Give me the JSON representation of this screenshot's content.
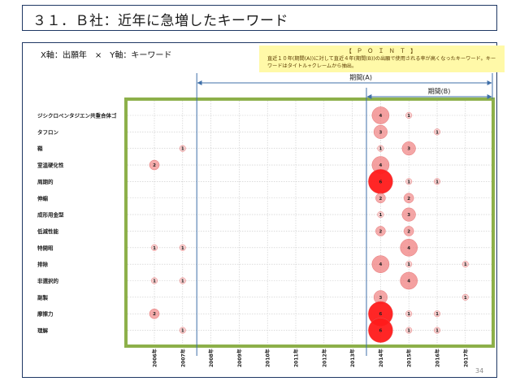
{
  "slide": {
    "title": "３１．Ｂ社：近年に急増したキーワード",
    "axis_description": "X軸：出願年　×　Y軸：キーワード",
    "point_title": "【 Ｐ Ｏ Ｉ Ｎ Ｔ 】",
    "point_body": "直近１０年(期間(A))に対して直近４年(期間(B))の出願で使用される率が高くなったキーワード。キーワードはタイトル+クレームから抽出。",
    "period_a_label": "期間(A)",
    "period_b_label": "期間(B)",
    "page_number": "34"
  },
  "colors": {
    "frame": "#1f3864",
    "plot_border": "#8db04a",
    "period_line": "#3f6fa8",
    "bubble_fill": "#f08080",
    "bubble_strong": "#ff1a1a",
    "point_bg": "#fff9a8"
  },
  "chart_data": {
    "type": "scatter",
    "subtype": "bubble",
    "x_categories": [
      "2006年",
      "2007年",
      "2008年",
      "2009年",
      "2010年",
      "2011年",
      "2012年",
      "2013年",
      "2014年",
      "2015年",
      "2016年",
      "2017年"
    ],
    "y_categories": [
      "ジシクロペンタジエン共重合体ゴ",
      "タフロン",
      "鞘",
      "室温硬化性",
      "周期的",
      "伸縮",
      "成形用金型",
      "低減性能",
      "特開昭",
      "排除",
      "非選択的",
      "副製",
      "摩擦力",
      "理解"
    ],
    "points": [
      {
        "y": "ジシクロペンタジエン共重合体ゴ",
        "x": "2014年",
        "v": 4
      },
      {
        "y": "ジシクロペンタジエン共重合体ゴ",
        "x": "2015年",
        "v": 1
      },
      {
        "y": "タフロン",
        "x": "2014年",
        "v": 3
      },
      {
        "y": "タフロン",
        "x": "2016年",
        "v": 1
      },
      {
        "y": "鞘",
        "x": "2007年",
        "v": 1
      },
      {
        "y": "鞘",
        "x": "2014年",
        "v": 1
      },
      {
        "y": "鞘",
        "x": "2015年",
        "v": 3
      },
      {
        "y": "室温硬化性",
        "x": "2006年",
        "v": 2
      },
      {
        "y": "室温硬化性",
        "x": "2014年",
        "v": 4
      },
      {
        "y": "周期的",
        "x": "2014年",
        "v": 6
      },
      {
        "y": "周期的",
        "x": "2015年",
        "v": 1
      },
      {
        "y": "周期的",
        "x": "2016年",
        "v": 1
      },
      {
        "y": "伸縮",
        "x": "2014年",
        "v": 2
      },
      {
        "y": "伸縮",
        "x": "2015年",
        "v": 2
      },
      {
        "y": "成形用金型",
        "x": "2014年",
        "v": 1
      },
      {
        "y": "成形用金型",
        "x": "2015年",
        "v": 3
      },
      {
        "y": "低減性能",
        "x": "2014年",
        "v": 2
      },
      {
        "y": "低減性能",
        "x": "2015年",
        "v": 2
      },
      {
        "y": "特開昭",
        "x": "2006年",
        "v": 1
      },
      {
        "y": "特開昭",
        "x": "2007年",
        "v": 1
      },
      {
        "y": "特開昭",
        "x": "2015年",
        "v": 4
      },
      {
        "y": "排除",
        "x": "2014年",
        "v": 4
      },
      {
        "y": "排除",
        "x": "2015年",
        "v": 1
      },
      {
        "y": "排除",
        "x": "2017年",
        "v": 1
      },
      {
        "y": "非選択的",
        "x": "2006年",
        "v": 1
      },
      {
        "y": "非選択的",
        "x": "2007年",
        "v": 1
      },
      {
        "y": "非選択的",
        "x": "2015年",
        "v": 4
      },
      {
        "y": "副製",
        "x": "2014年",
        "v": 3
      },
      {
        "y": "副製",
        "x": "2017年",
        "v": 1
      },
      {
        "y": "摩擦力",
        "x": "2006年",
        "v": 2
      },
      {
        "y": "摩擦力",
        "x": "2014年",
        "v": 6
      },
      {
        "y": "摩擦力",
        "x": "2015年",
        "v": 1
      },
      {
        "y": "摩擦力",
        "x": "2016年",
        "v": 1
      },
      {
        "y": "理解",
        "x": "2007年",
        "v": 1
      },
      {
        "y": "理解",
        "x": "2014年",
        "v": 6
      },
      {
        "y": "理解",
        "x": "2015年",
        "v": 1
      },
      {
        "y": "理解",
        "x": "2016年",
        "v": 1
      }
    ],
    "period_a": [
      "2008年",
      "2017年"
    ],
    "period_b": [
      "2014年",
      "2017年"
    ],
    "grid": true
  }
}
